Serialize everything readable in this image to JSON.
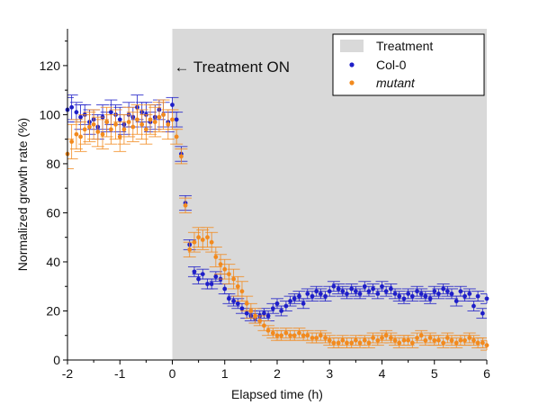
{
  "chart_data": {
    "type": "scatter",
    "xlabel": "Elapsed time (h)",
    "ylabel": "Normalized growth rate (%)",
    "xlim": [
      -2,
      6
    ],
    "ylim": [
      0,
      135
    ],
    "x_ticks": [
      -2,
      -1,
      0,
      1,
      2,
      3,
      4,
      5,
      6
    ],
    "y_ticks": [
      0,
      20,
      40,
      60,
      80,
      100,
      120
    ],
    "x_tick_labels": [
      "-2",
      "-1",
      "0",
      "1",
      "2",
      "3",
      "4",
      "5",
      "6"
    ],
    "y_tick_labels": [
      "0",
      "20",
      "40",
      "60",
      "80",
      "100",
      "120"
    ],
    "grid": false,
    "treatment_region": {
      "x_start": 0,
      "x_end": 6,
      "color": "#d9d9d9"
    },
    "annotation": "← Treatment ON",
    "legend": {
      "position": "top-right",
      "entries": [
        {
          "label": "Treatment",
          "kind": "patch",
          "color": "#d9d9d9",
          "italic": false
        },
        {
          "label": "Col-0",
          "kind": "marker",
          "color": "#1f1fc8",
          "italic": false
        },
        {
          "label": "mutant",
          "kind": "marker",
          "color": "#f28a1e",
          "italic": true
        }
      ]
    },
    "error_bar_halfwidth_h": 0.12,
    "series": [
      {
        "name": "Col-0",
        "color": "#1f1fc8",
        "x": [
          -2.0,
          -1.92,
          -1.83,
          -1.75,
          -1.67,
          -1.58,
          -1.5,
          -1.42,
          -1.33,
          -1.25,
          -1.17,
          -1.08,
          -1.0,
          -0.92,
          -0.83,
          -0.75,
          -0.67,
          -0.58,
          -0.5,
          -0.42,
          -0.33,
          -0.25,
          -0.17,
          -0.08,
          0.0,
          0.08,
          0.17,
          0.25,
          0.33,
          0.42,
          0.5,
          0.58,
          0.67,
          0.75,
          0.83,
          0.92,
          1.0,
          1.08,
          1.17,
          1.25,
          1.33,
          1.42,
          1.5,
          1.58,
          1.67,
          1.75,
          1.83,
          1.92,
          2.0,
          2.08,
          2.17,
          2.25,
          2.33,
          2.42,
          2.5,
          2.58,
          2.67,
          2.75,
          2.83,
          2.92,
          3.0,
          3.08,
          3.17,
          3.25,
          3.33,
          3.42,
          3.5,
          3.58,
          3.67,
          3.75,
          3.83,
          3.92,
          4.0,
          4.08,
          4.17,
          4.25,
          4.33,
          4.42,
          4.5,
          4.58,
          4.67,
          4.75,
          4.83,
          4.92,
          5.0,
          5.08,
          5.17,
          5.25,
          5.33,
          5.42,
          5.5,
          5.58,
          5.67,
          5.75,
          5.83,
          5.92,
          6.0
        ],
        "y": [
          102,
          103,
          101,
          99,
          100,
          97,
          98,
          95,
          99,
          97,
          101,
          100,
          98,
          96,
          100,
          99,
          103,
          101,
          100,
          97,
          99,
          102,
          100,
          97,
          104,
          98,
          84,
          64,
          47,
          36,
          33,
          35,
          31,
          31,
          34,
          33,
          29,
          25,
          24,
          23,
          21,
          19,
          18,
          17,
          18,
          19,
          18,
          21,
          23,
          20,
          22,
          24,
          25,
          26,
          23,
          27,
          26,
          28,
          27,
          26,
          28,
          30,
          29,
          28,
          27,
          29,
          28,
          27,
          30,
          28,
          29,
          27,
          30,
          28,
          29,
          27,
          26,
          25,
          27,
          26,
          28,
          27,
          26,
          25,
          28,
          27,
          29,
          28,
          27,
          24,
          28,
          26,
          27,
          22,
          26,
          19,
          25
        ],
        "error": [
          5,
          5,
          4,
          5,
          4,
          5,
          4,
          5,
          5,
          4,
          5,
          4,
          5,
          4,
          5,
          4,
          5,
          4,
          5,
          4,
          5,
          4,
          5,
          4,
          3,
          3,
          3,
          3,
          2,
          2,
          2,
          2,
          2,
          2,
          2,
          2,
          2,
          2,
          2,
          2,
          2,
          2,
          2,
          2,
          2,
          2,
          2,
          2,
          2,
          2,
          2,
          2,
          2,
          2,
          2,
          2,
          2,
          2,
          2,
          2,
          2,
          2,
          2,
          2,
          2,
          2,
          2,
          2,
          2,
          2,
          2,
          2,
          2,
          2,
          2,
          2,
          2,
          2,
          2,
          2,
          2,
          2,
          2,
          2,
          2,
          2,
          2,
          2,
          2,
          2,
          2,
          2,
          2,
          2,
          2,
          2,
          2
        ]
      },
      {
        "name": "mutant",
        "color": "#f28a1e",
        "x": [
          -2.0,
          -1.92,
          -1.83,
          -1.75,
          -1.67,
          -1.58,
          -1.5,
          -1.42,
          -1.33,
          -1.25,
          -1.17,
          -1.08,
          -1.0,
          -0.92,
          -0.83,
          -0.75,
          -0.67,
          -0.58,
          -0.5,
          -0.42,
          -0.33,
          -0.25,
          -0.17,
          -0.08,
          0.0,
          0.08,
          0.17,
          0.25,
          0.33,
          0.42,
          0.5,
          0.58,
          0.67,
          0.75,
          0.83,
          0.92,
          1.0,
          1.08,
          1.17,
          1.25,
          1.33,
          1.42,
          1.5,
          1.58,
          1.67,
          1.75,
          1.83,
          1.92,
          2.0,
          2.08,
          2.17,
          2.25,
          2.33,
          2.42,
          2.5,
          2.58,
          2.67,
          2.75,
          2.83,
          2.92,
          3.0,
          3.08,
          3.17,
          3.25,
          3.33,
          3.42,
          3.5,
          3.58,
          3.67,
          3.75,
          3.83,
          3.92,
          4.0,
          4.08,
          4.17,
          4.25,
          4.33,
          4.42,
          4.5,
          4.58,
          4.67,
          4.75,
          4.83,
          4.92,
          5.0,
          5.08,
          5.17,
          5.25,
          5.33,
          5.42,
          5.5,
          5.58,
          5.67,
          5.75,
          5.83,
          5.92,
          6.0
        ],
        "y": [
          84,
          89,
          92,
          91,
          94,
          95,
          96,
          93,
          92,
          97,
          94,
          96,
          91,
          94,
          97,
          95,
          98,
          96,
          94,
          98,
          97,
          99,
          100,
          96,
          98,
          91,
          83,
          63,
          45,
          48,
          50,
          49,
          50,
          48,
          42,
          39,
          37,
          35,
          33,
          30,
          28,
          23,
          20,
          18,
          16,
          14,
          12,
          11,
          10,
          10,
          11,
          10,
          10,
          11,
          10,
          10,
          9,
          9,
          10,
          9,
          8,
          7,
          7,
          8,
          7,
          7,
          8,
          7,
          8,
          7,
          9,
          8,
          9,
          10,
          9,
          8,
          7,
          8,
          8,
          7,
          9,
          10,
          8,
          9,
          8,
          8,
          7,
          9,
          8,
          7,
          8,
          8,
          9,
          8,
          7,
          7,
          6
        ],
        "error": [
          6,
          7,
          6,
          6,
          6,
          6,
          6,
          6,
          6,
          6,
          6,
          6,
          6,
          6,
          6,
          6,
          6,
          6,
          6,
          6,
          6,
          6,
          6,
          6,
          4,
          3,
          3,
          3,
          3,
          4,
          4,
          4,
          4,
          4,
          4,
          4,
          4,
          4,
          4,
          4,
          4,
          3,
          3,
          3,
          2,
          2,
          2,
          2,
          2,
          2,
          2,
          2,
          2,
          2,
          2,
          2,
          2,
          2,
          2,
          2,
          2,
          2,
          2,
          2,
          2,
          2,
          2,
          2,
          2,
          2,
          2,
          2,
          2,
          2,
          2,
          2,
          2,
          2,
          2,
          2,
          2,
          2,
          2,
          2,
          2,
          2,
          2,
          2,
          2,
          2,
          2,
          2,
          2,
          2,
          2,
          2,
          2
        ]
      }
    ]
  }
}
